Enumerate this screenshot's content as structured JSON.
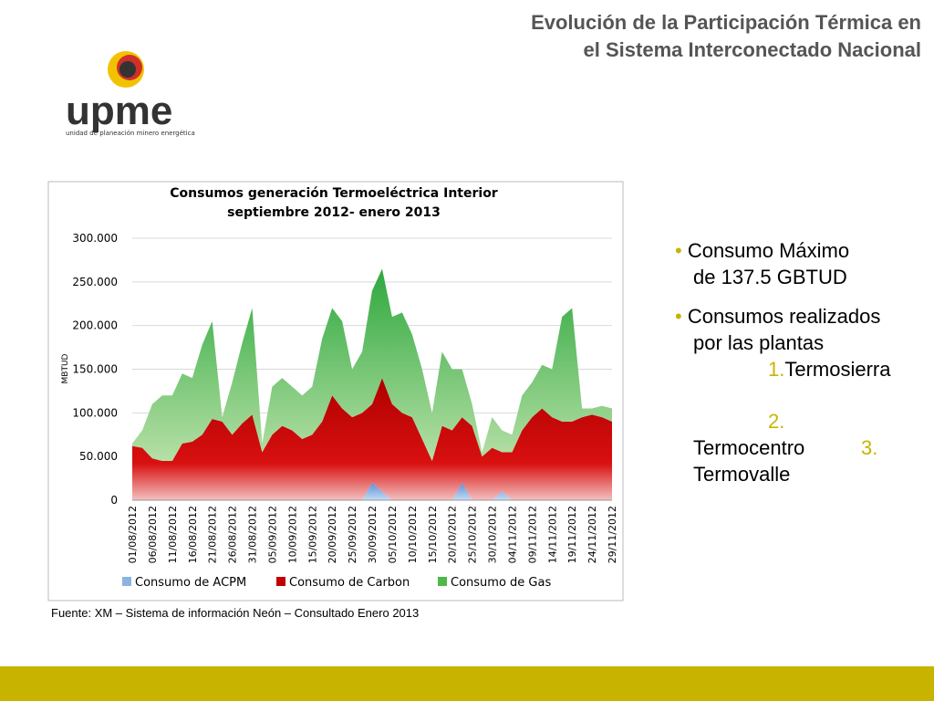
{
  "slide": {
    "title_lines": [
      "Evolución de la Participación Térmica en",
      "el Sistema Interconectado Nacional"
    ],
    "logo": {
      "name": "upme",
      "tagline": "unidad de planeación minero energética"
    },
    "bullets": [
      "Consumo Máximo",
      "de 137.5 GBTUD",
      "Consumos realizados",
      "por las plantas"
    ],
    "plants": [
      {
        "num": "1.",
        "name": "Termosierra"
      },
      {
        "num": "2.",
        "name": "Termocentro"
      },
      {
        "num": "3.",
        "name": "Termovalle"
      }
    ],
    "source": "Fuente: XM – Sistema de información Neón – Consultado Enero 2013"
  },
  "chart_data": {
    "type": "stacked_area",
    "title": "Consumos generación Termoeléctrica Interior",
    "subtitle": "septiembre 2012- enero 2013",
    "ylabel": "MBTUD",
    "categories": [
      "01/08/2012",
      null,
      "06/08/2012",
      null,
      "11/08/2012",
      null,
      "16/08/2012",
      null,
      "21/08/2012",
      null,
      "26/08/2012",
      null,
      "31/08/2012",
      null,
      "05/09/2012",
      null,
      "10/09/2012",
      null,
      "15/09/2012",
      null,
      "20/09/2012",
      null,
      "25/09/2012",
      null,
      "30/09/2012",
      null,
      "05/10/2012",
      null,
      "10/10/2012",
      null,
      "15/10/2012",
      null,
      "20/10/2012",
      null,
      "25/10/2012",
      null,
      "30/10/2012",
      null,
      "04/11/2012",
      null,
      "09/11/2012",
      null,
      "14/11/2012",
      null,
      "19/11/2012",
      null,
      "24/11/2012",
      null,
      "29/11/2012"
    ],
    "series": [
      {
        "name": "Consumo de ACPM",
        "color": "#8db3e2",
        "values": [
          0,
          0,
          0,
          0,
          0,
          0,
          0,
          0,
          0,
          0,
          0,
          0,
          0,
          0,
          0,
          0,
          0,
          0,
          0,
          0,
          0,
          0,
          0,
          0,
          20000,
          10000,
          0,
          0,
          0,
          0,
          0,
          0,
          0,
          20000,
          0,
          0,
          0,
          10000,
          0,
          0,
          0,
          0,
          0,
          0,
          0,
          0,
          0,
          0,
          0
        ]
      },
      {
        "name": "Consumo de Carbon",
        "color": "#c00000",
        "values": [
          62000,
          60000,
          48000,
          45000,
          45000,
          65000,
          67000,
          75000,
          93000,
          90000,
          75000,
          88000,
          98000,
          55000,
          75000,
          85000,
          80000,
          70000,
          75000,
          90000,
          120000,
          105000,
          95000,
          100000,
          90000,
          130000,
          110000,
          100000,
          95000,
          70000,
          45000,
          85000,
          80000,
          75000,
          85000,
          50000,
          60000,
          45000,
          55000,
          80000,
          95000,
          105000,
          95000,
          90000,
          90000,
          95000,
          98000,
          95000,
          90000
        ]
      },
      {
        "name": "Consumo de Gas",
        "color": "#4fb848",
        "values": [
          3000,
          20000,
          62000,
          75000,
          75000,
          80000,
          73000,
          103000,
          112000,
          5000,
          60000,
          92000,
          122000,
          10000,
          55000,
          55000,
          50000,
          50000,
          55000,
          95000,
          100000,
          100000,
          55000,
          70000,
          130000,
          125000,
          100000,
          115000,
          95000,
          80000,
          55000,
          85000,
          70000,
          55000,
          25000,
          5000,
          35000,
          25000,
          20000,
          40000,
          40000,
          50000,
          55000,
          120000,
          130000,
          10000,
          7000,
          13000,
          15000
        ]
      }
    ],
    "ylim": [
      0,
      300000
    ],
    "yticks": [
      0,
      {
        "value": 50000,
        "label": "50.000"
      },
      {
        "value": 100000,
        "label": "100.000"
      },
      {
        "value": 150000,
        "label": "150.000"
      },
      {
        "value": 200000,
        "label": "200.000"
      },
      {
        "value": 250000,
        "label": "250.000"
      },
      {
        "value": 300000,
        "label": "300.000"
      }
    ],
    "grid": true,
    "legend": "bottom"
  }
}
